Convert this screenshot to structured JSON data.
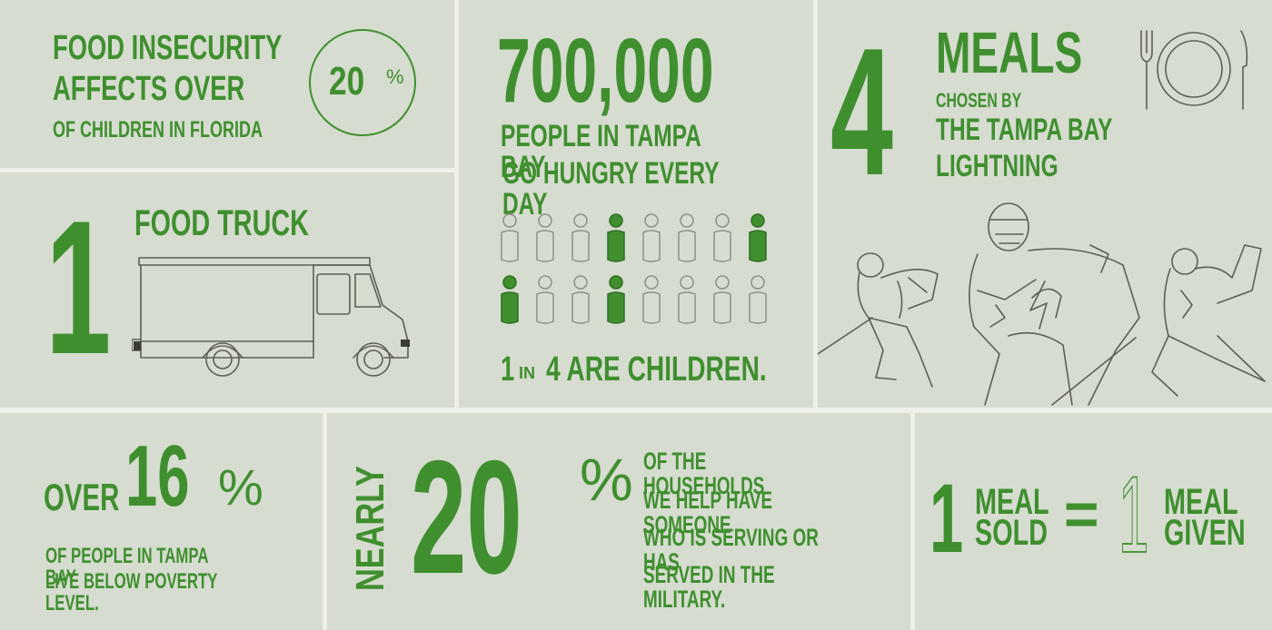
{
  "palette": {
    "green": "#3f8f2f",
    "panel": "#d6dccf",
    "gap": "#eef0ea",
    "line": "#5c5f57"
  },
  "food_insecurity": {
    "line1": "FOOD INSECURITY",
    "line2": "AFFECTS OVER",
    "line3": "OF CHILDREN IN FLORIDA",
    "percent_number": "20",
    "percent_sign": "%"
  },
  "hungry": {
    "number": "700,000",
    "line1": "PEOPLE IN TAMPA BAY",
    "line2": "GO HUNGRY EVERY DAY",
    "children_one": "1",
    "children_in": "IN",
    "children_rest": "4 ARE CHILDREN.",
    "people_rows": [
      [
        "outline",
        "outline",
        "outline",
        "filled",
        "outline",
        "outline",
        "outline",
        "filled"
      ],
      [
        "filled",
        "outline",
        "outline",
        "filled",
        "outline",
        "outline",
        "outline",
        "outline"
      ]
    ],
    "children_ratio": {
      "children": 1,
      "of": 4
    }
  },
  "meals": {
    "number": "4",
    "heading": "MEALS",
    "line1": "CHOSEN BY",
    "line2": "THE TAMPA BAY",
    "line3": "LIGHTNING",
    "table_icon": "fork-plate-knife-icon",
    "illustration": "hockey-players-illustration"
  },
  "truck": {
    "number": "1",
    "label": "FOOD TRUCK",
    "icon": "food-truck-icon"
  },
  "poverty": {
    "over": "OVER",
    "number": "16",
    "percent_sign": "%",
    "line1": "OF PEOPLE IN TAMPA BAY",
    "line2": "LIVE BELOW POVERTY LEVEL."
  },
  "military": {
    "nearly": "NEARLY",
    "number": "20",
    "percent_sign": "%",
    "line1": "OF THE HOUSEHOLDS",
    "line2": "WE HELP HAVE SOMEONE",
    "line3": "WHO IS SERVING OR HAS",
    "line4": "SERVED IN THE MILITARY."
  },
  "meal_given": {
    "left_number": "1",
    "left_line1": "MEAL",
    "left_line2": "SOLD",
    "equals": "=",
    "right_number": "1",
    "right_line1": "MEAL",
    "right_line2": "GIVEN"
  }
}
